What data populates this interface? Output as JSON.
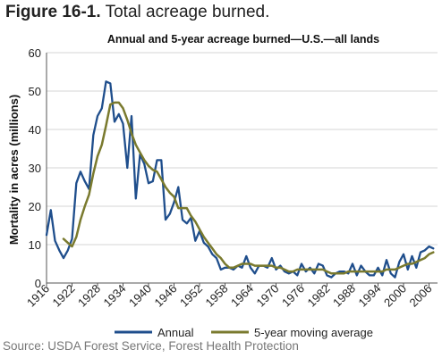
{
  "figure": {
    "number": "Figure 16-1.",
    "caption": "Total acreage burned.",
    "source": "Source: USDA Forest Service, Forest Health Protection"
  },
  "chart_data": {
    "type": "line",
    "title": "Annual and 5-year acreage burned—U.S.—all lands",
    "xlabel": "",
    "ylabel": "Mortality in acres (millions)",
    "xlim": [
      1916,
      2008
    ],
    "ylim": [
      0,
      60
    ],
    "x_ticks": [
      1916,
      1922,
      1928,
      1934,
      1940,
      1946,
      1952,
      1958,
      1964,
      1970,
      1976,
      1982,
      1988,
      1994,
      2000,
      2006
    ],
    "y_ticks": [
      0,
      10,
      20,
      30,
      40,
      50,
      60
    ],
    "grid": "horizontal",
    "legend": "bottom",
    "series": [
      {
        "name": "Annual",
        "color": "#1f4e8c",
        "points": [
          [
            1916,
            12.5
          ],
          [
            1917,
            19.0
          ],
          [
            1918,
            11.0
          ],
          [
            1919,
            8.5
          ],
          [
            1920,
            6.5
          ],
          [
            1921,
            8.5
          ],
          [
            1922,
            11.5
          ],
          [
            1923,
            26.0
          ],
          [
            1924,
            29.0
          ],
          [
            1925,
            26.5
          ],
          [
            1926,
            24.5
          ],
          [
            1927,
            38.5
          ],
          [
            1928,
            43.5
          ],
          [
            1929,
            45.5
          ],
          [
            1930,
            52.5
          ],
          [
            1931,
            52.0
          ],
          [
            1932,
            42.0
          ],
          [
            1933,
            44.0
          ],
          [
            1934,
            41.5
          ],
          [
            1935,
            30.0
          ],
          [
            1936,
            43.5
          ],
          [
            1937,
            22.0
          ],
          [
            1938,
            33.5
          ],
          [
            1939,
            31.0
          ],
          [
            1940,
            26.0
          ],
          [
            1941,
            26.5
          ],
          [
            1942,
            32.0
          ],
          [
            1943,
            32.0
          ],
          [
            1944,
            16.5
          ],
          [
            1945,
            18.0
          ],
          [
            1946,
            21.0
          ],
          [
            1947,
            25.0
          ],
          [
            1948,
            16.5
          ],
          [
            1949,
            15.5
          ],
          [
            1950,
            17.0
          ],
          [
            1951,
            11.0
          ],
          [
            1952,
            13.5
          ],
          [
            1953,
            10.5
          ],
          [
            1954,
            9.5
          ],
          [
            1955,
            7.5
          ],
          [
            1956,
            6.5
          ],
          [
            1957,
            3.5
          ],
          [
            1958,
            4.0
          ],
          [
            1959,
            4.0
          ],
          [
            1960,
            3.5
          ],
          [
            1961,
            4.5
          ],
          [
            1962,
            4.0
          ],
          [
            1963,
            7.0
          ],
          [
            1964,
            4.0
          ],
          [
            1965,
            2.5
          ],
          [
            1966,
            4.5
          ],
          [
            1967,
            4.5
          ],
          [
            1968,
            4.0
          ],
          [
            1969,
            6.5
          ],
          [
            1970,
            3.5
          ],
          [
            1971,
            4.5
          ],
          [
            1972,
            3.0
          ],
          [
            1973,
            2.5
          ],
          [
            1974,
            3.0
          ],
          [
            1975,
            2.0
          ],
          [
            1976,
            5.0
          ],
          [
            1977,
            3.0
          ],
          [
            1978,
            4.0
          ],
          [
            1979,
            2.5
          ],
          [
            1980,
            5.0
          ],
          [
            1981,
            4.5
          ],
          [
            1982,
            2.0
          ],
          [
            1983,
            1.5
          ],
          [
            1984,
            2.5
          ],
          [
            1985,
            3.0
          ],
          [
            1986,
            3.0
          ],
          [
            1987,
            2.5
          ],
          [
            1988,
            5.0
          ],
          [
            1989,
            2.0
          ],
          [
            1990,
            4.5
          ],
          [
            1991,
            3.0
          ],
          [
            1992,
            2.0
          ],
          [
            1993,
            2.0
          ],
          [
            1994,
            4.0
          ],
          [
            1995,
            2.0
          ],
          [
            1996,
            6.0
          ],
          [
            1997,
            2.5
          ],
          [
            1998,
            1.5
          ],
          [
            1999,
            5.5
          ],
          [
            2000,
            7.5
          ],
          [
            2001,
            3.5
          ],
          [
            2002,
            7.0
          ],
          [
            2003,
            4.0
          ],
          [
            2004,
            8.0
          ],
          [
            2005,
            8.5
          ],
          [
            2006,
            9.5
          ],
          [
            2007,
            9.0
          ]
        ]
      },
      {
        "name": "5-year moving average",
        "color": "#7a7a2e",
        "points": [
          [
            1920,
            11.5
          ],
          [
            1921,
            10.5
          ],
          [
            1922,
            9.5
          ],
          [
            1923,
            12.0
          ],
          [
            1924,
            16.5
          ],
          [
            1925,
            20.0
          ],
          [
            1926,
            23.0
          ],
          [
            1927,
            28.5
          ],
          [
            1928,
            33.0
          ],
          [
            1929,
            36.0
          ],
          [
            1930,
            41.0
          ],
          [
            1931,
            46.5
          ],
          [
            1932,
            47.0
          ],
          [
            1933,
            47.0
          ],
          [
            1934,
            45.5
          ],
          [
            1935,
            42.5
          ],
          [
            1936,
            39.0
          ],
          [
            1937,
            36.0
          ],
          [
            1938,
            34.0
          ],
          [
            1939,
            32.0
          ],
          [
            1940,
            30.5
          ],
          [
            1941,
            29.5
          ],
          [
            1942,
            29.0
          ],
          [
            1943,
            27.0
          ],
          [
            1944,
            25.0
          ],
          [
            1945,
            23.5
          ],
          [
            1946,
            22.5
          ],
          [
            1947,
            19.5
          ],
          [
            1948,
            19.5
          ],
          [
            1949,
            19.5
          ],
          [
            1950,
            17.5
          ],
          [
            1951,
            16.0
          ],
          [
            1952,
            14.0
          ],
          [
            1953,
            12.0
          ],
          [
            1954,
            10.5
          ],
          [
            1955,
            9.0
          ],
          [
            1956,
            7.5
          ],
          [
            1957,
            6.5
          ],
          [
            1958,
            5.0
          ],
          [
            1959,
            4.0
          ],
          [
            1960,
            4.0
          ],
          [
            1961,
            4.5
          ],
          [
            1962,
            5.0
          ],
          [
            1963,
            5.0
          ],
          [
            1964,
            5.0
          ],
          [
            1965,
            4.5
          ],
          [
            1966,
            4.5
          ],
          [
            1967,
            4.5
          ],
          [
            1968,
            4.5
          ],
          [
            1969,
            4.5
          ],
          [
            1970,
            4.0
          ],
          [
            1971,
            4.0
          ],
          [
            1972,
            3.5
          ],
          [
            1973,
            3.0
          ],
          [
            1974,
            3.0
          ],
          [
            1975,
            3.5
          ],
          [
            1976,
            3.5
          ],
          [
            1977,
            3.5
          ],
          [
            1978,
            3.5
          ],
          [
            1979,
            3.5
          ],
          [
            1980,
            3.5
          ],
          [
            1981,
            3.5
          ],
          [
            1982,
            3.0
          ],
          [
            1983,
            2.5
          ],
          [
            1984,
            2.5
          ],
          [
            1985,
            2.5
          ],
          [
            1986,
            2.5
          ],
          [
            1987,
            3.0
          ],
          [
            1988,
            3.0
          ],
          [
            1989,
            3.0
          ],
          [
            1990,
            3.0
          ],
          [
            1991,
            3.0
          ],
          [
            1992,
            3.0
          ],
          [
            1993,
            3.0
          ],
          [
            1994,
            3.0
          ],
          [
            1995,
            3.0
          ],
          [
            1996,
            3.5
          ],
          [
            1997,
            3.5
          ],
          [
            1998,
            3.5
          ],
          [
            1999,
            4.0
          ],
          [
            2000,
            4.5
          ],
          [
            2001,
            5.0
          ],
          [
            2002,
            5.0
          ],
          [
            2003,
            5.5
          ],
          [
            2004,
            6.0
          ],
          [
            2005,
            6.5
          ],
          [
            2006,
            7.5
          ],
          [
            2007,
            8.0
          ]
        ]
      }
    ]
  }
}
